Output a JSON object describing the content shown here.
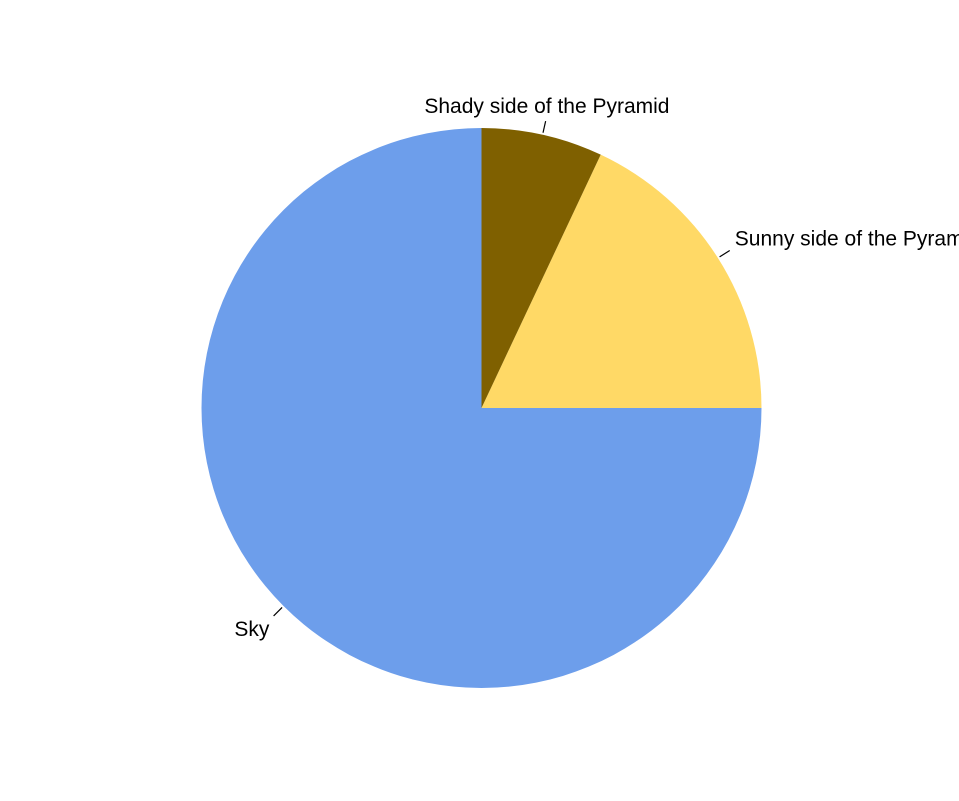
{
  "chart_data": {
    "type": "pie",
    "title": "",
    "start_angle_deg": 90,
    "direction": "counterclockwise",
    "slices": [
      {
        "label": "Sky",
        "value": 0.75,
        "color": "#6d9eeb"
      },
      {
        "label": "Sunny side of the Pyramid",
        "value": 0.18,
        "color": "#ffd966"
      },
      {
        "label": "Shady side of the Pyramid",
        "value": 0.07,
        "color": "#7f6000"
      }
    ],
    "legend": "none",
    "label_placement": "outside-with-leader-lines"
  }
}
